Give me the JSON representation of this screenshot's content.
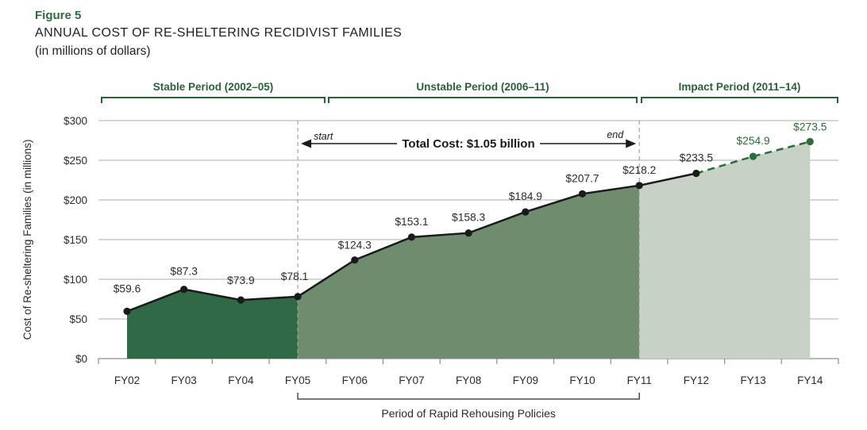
{
  "figure": {
    "label": "Figure 5",
    "title": "ANNUAL COST OF RE-SHELTERING RECIDIVIST FAMILIES",
    "subtitle": "(in millions of dollars)"
  },
  "chart_data": {
    "type": "area",
    "title": "Annual Cost of Re-sheltering Recidivist Families",
    "units": "millions of dollars",
    "categories": [
      "FY02",
      "FY03",
      "FY04",
      "FY05",
      "FY06",
      "FY07",
      "FY08",
      "FY09",
      "FY10",
      "FY11",
      "FY12",
      "FY13",
      "FY14"
    ],
    "values": [
      59.6,
      87.3,
      73.9,
      78.1,
      124.3,
      153.1,
      158.3,
      184.9,
      207.7,
      218.2,
      233.5,
      254.9,
      273.5
    ],
    "value_prefix": "$",
    "xlabel": "",
    "ylabel": "Cost of Re-sheltering Families (in millions)",
    "yticks": [
      0,
      50,
      100,
      150,
      200,
      250,
      300
    ],
    "ylim": [
      0,
      300
    ],
    "grid": true,
    "legend": "none",
    "periods": [
      {
        "label": "Stable Period (2002–05)",
        "from_index": 0,
        "to_index": 3,
        "fill": "#2f6945"
      },
      {
        "label": "Unstable Period (2006–11)",
        "from_index": 3,
        "to_index": 9,
        "fill": "#6f8c6f"
      },
      {
        "label": "Impact Period (2011–14)",
        "from_index": 9,
        "to_index": 12,
        "fill": "#c7d1c5"
      }
    ],
    "projection": {
      "start_index": 10,
      "style": "dashed",
      "line_color": "#2a6b40",
      "label_color": "#2a6b40"
    },
    "annotation": {
      "text": "Total Cost: $1.05 billion",
      "start_label": "start",
      "end_label": "end",
      "from_index": 3,
      "to_index": 9
    },
    "bottom_bracket": {
      "label": "Period of Rapid Rehousing Policies",
      "from_index": 3,
      "to_index": 9
    },
    "line_color": "#1a1a1a",
    "colors": {
      "heading_green": "#2a5e3c",
      "figure_green": "#2d6b43",
      "grid": "#bcbcbc",
      "axis": "#8f8f8f",
      "dashed_boundary": "#a3a3a3",
      "text": "#2b2b2b",
      "bracket": "#4a4a4a"
    }
  }
}
